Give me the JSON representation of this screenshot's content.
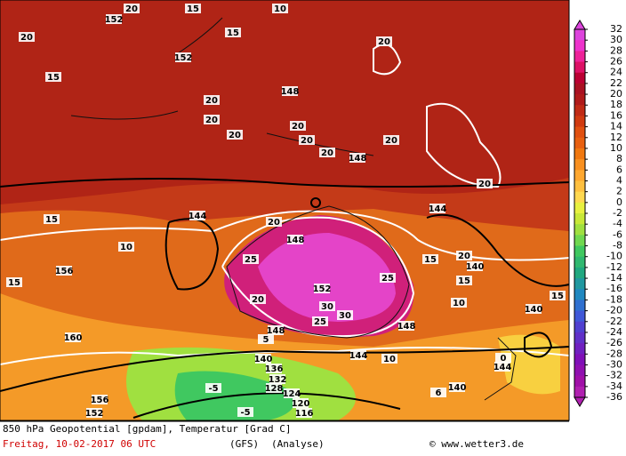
{
  "map": {
    "contour_labels": [
      "152",
      "20",
      "15",
      "10",
      "20",
      "15",
      "152",
      "15",
      "20",
      "20",
      "148",
      "20",
      "20",
      "20",
      "20",
      "20",
      "148",
      "20",
      "20",
      "15",
      "144",
      "20",
      "148",
      "25",
      "152",
      "30",
      "30",
      "25",
      "25",
      "20",
      "148",
      "144",
      "144",
      "15",
      "20",
      "140",
      "10",
      "156",
      "160",
      "152",
      "156",
      "140",
      "136",
      "132",
      "128",
      "124",
      "120",
      "116",
      "-5",
      "-5",
      "10",
      "15",
      "5",
      "144",
      "140",
      "0",
      "6",
      "10",
      "15",
      "148",
      "140",
      "15"
    ],
    "legend": {
      "levels": [
        32,
        30,
        28,
        26,
        24,
        22,
        20,
        18,
        16,
        14,
        12,
        10,
        8,
        6,
        4,
        2,
        0,
        -2,
        -4,
        -6,
        -8,
        -10,
        -12,
        -14,
        -16,
        -18,
        -20,
        -22,
        -24,
        -26,
        -28,
        -30,
        -32,
        -34,
        -36
      ],
      "colors": [
        "#dd44dd",
        "#ee33cc",
        "#ee2299",
        "#dd1166",
        "#bb0033",
        "#aa1122",
        "#b01a1a",
        "#c02a15",
        "#d03a10",
        "#e05010",
        "#e86010",
        "#f07810",
        "#f89020",
        "#ffa830",
        "#ffc040",
        "#ffd850",
        "#e8f040",
        "#c8e838",
        "#a0e040",
        "#70d850",
        "#40c860",
        "#30b870",
        "#20a880",
        "#2098a0",
        "#2088c0",
        "#3070d0",
        "#4058d8",
        "#5040d0",
        "#6030c8",
        "#7020c0",
        "#8010b8",
        "#9010b0",
        "#a010a8",
        "#b020b0"
      ]
    },
    "footer": {
      "product": "850 hPa Geopotential [gpdam], Temperatur [Grad C]",
      "date": "Freitag, 10-02-2017  06 UTC",
      "model": "(GFS)",
      "run": "(Analyse)",
      "source": "© www.wetter3.de"
    }
  }
}
